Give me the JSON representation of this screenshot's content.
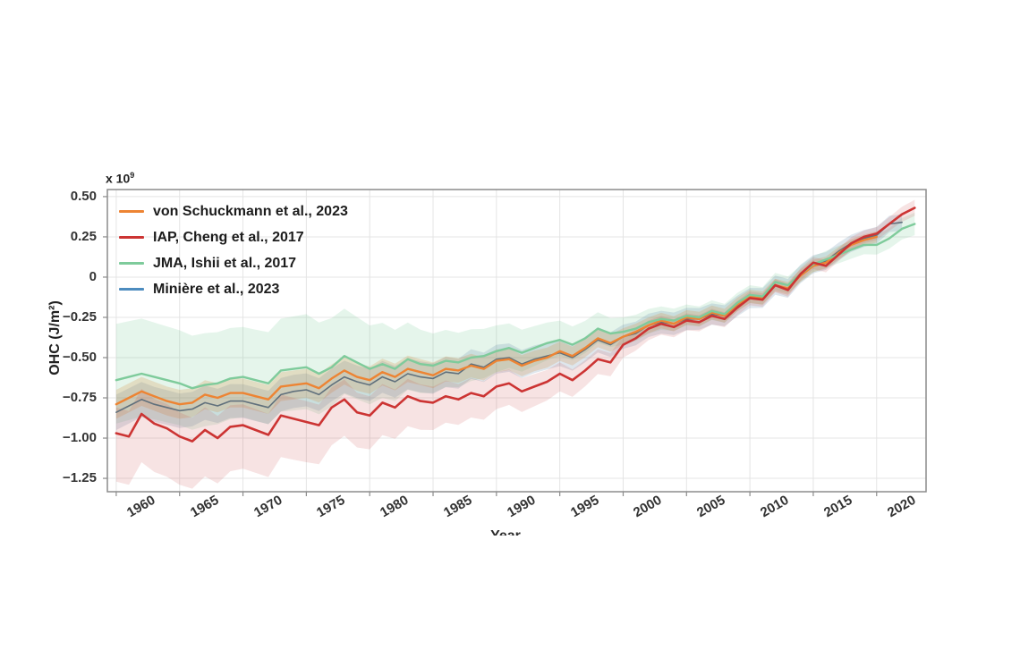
{
  "figure": {
    "ylabel": "OHC (J/m²)",
    "xlabel": "Year",
    "offset_label": {
      "base": "x 10",
      "exponent": "9"
    }
  },
  "chart_data": {
    "type": "line",
    "title": "",
    "xlabel": "Year",
    "ylabel": "OHC (J/m²)",
    "y_scale_label": "x 10⁹",
    "grid": true,
    "legend_position": "top-left-inside",
    "xlim": [
      1959.3,
      2023.9
    ],
    "ylim": [
      -1.333,
      0.544
    ],
    "x_ticks": [
      1960,
      1965,
      1970,
      1975,
      1980,
      1985,
      1990,
      1995,
      2000,
      2005,
      2010,
      2015,
      2020
    ],
    "y_ticks": [
      0.5,
      0.25,
      0,
      -0.25,
      -0.5,
      -0.75,
      -1.0,
      -1.25
    ],
    "y_tick_labels": [
      "0.50",
      "0.25",
      "0",
      "−0.25",
      "−0.50",
      "−0.75",
      "−1.00",
      "−1.25"
    ],
    "colors": {
      "grid": "#e4e4e4",
      "frame": "#8c8c8c",
      "tick_text": "#333333"
    },
    "series": [
      {
        "name": "von Schuckmann et al., 2023",
        "color": "#ED8433",
        "band_color": "rgba(213,135,55,0.22)",
        "line_width": 2.4,
        "start_year": 1960,
        "values": [
          -0.79,
          -0.75,
          -0.71,
          -0.74,
          -0.77,
          -0.79,
          -0.78,
          -0.73,
          -0.75,
          -0.72,
          -0.72,
          -0.74,
          -0.76,
          -0.68,
          -0.67,
          -0.66,
          -0.69,
          -0.63,
          -0.58,
          -0.62,
          -0.64,
          -0.59,
          -0.62,
          -0.57,
          -0.59,
          -0.61,
          -0.57,
          -0.58,
          -0.55,
          -0.57,
          -0.52,
          -0.51,
          -0.55,
          -0.52,
          -0.5,
          -0.46,
          -0.49,
          -0.44,
          -0.38,
          -0.41,
          -0.37,
          -0.34,
          -0.3,
          -0.27,
          -0.29,
          -0.25,
          -0.26,
          -0.22,
          -0.24,
          -0.17,
          -0.12,
          -0.13,
          -0.05,
          -0.07,
          0.01,
          0.07,
          0.09,
          0.15,
          0.2,
          0.23,
          0.25
        ],
        "band_anchors": [
          [
            1960,
            0.09,
            0.09
          ],
          [
            1975,
            0.09,
            0.09
          ],
          [
            1985,
            0.08,
            0.08
          ],
          [
            1995,
            0.06,
            0.06
          ],
          [
            2005,
            0.045,
            0.045
          ],
          [
            2012,
            0.04,
            0.04
          ],
          [
            2020,
            0.035,
            0.035
          ]
        ]
      },
      {
        "name": "IAP, Cheng et al., 2017",
        "color": "#CC3433",
        "band_color": "rgba(204,70,70,0.15)",
        "line_width": 2.6,
        "start_year": 1960,
        "values": [
          -0.97,
          -0.99,
          -0.85,
          -0.91,
          -0.94,
          -0.99,
          -1.02,
          -0.95,
          -1.0,
          -0.93,
          -0.92,
          -0.95,
          -0.98,
          -0.86,
          -0.88,
          -0.9,
          -0.92,
          -0.81,
          -0.76,
          -0.84,
          -0.86,
          -0.78,
          -0.81,
          -0.74,
          -0.77,
          -0.78,
          -0.74,
          -0.76,
          -0.72,
          -0.74,
          -0.68,
          -0.66,
          -0.71,
          -0.68,
          -0.65,
          -0.6,
          -0.64,
          -0.58,
          -0.51,
          -0.53,
          -0.42,
          -0.38,
          -0.32,
          -0.29,
          -0.31,
          -0.27,
          -0.28,
          -0.24,
          -0.26,
          -0.19,
          -0.13,
          -0.14,
          -0.05,
          -0.08,
          0.02,
          0.09,
          0.07,
          0.14,
          0.21,
          0.25,
          0.27,
          0.33,
          0.39,
          0.43
        ],
        "band_anchors": [
          [
            1960,
            0.16,
            0.3
          ],
          [
            1965,
            0.15,
            0.3
          ],
          [
            1970,
            0.13,
            0.27
          ],
          [
            1975,
            0.13,
            0.25
          ],
          [
            1980,
            0.12,
            0.21
          ],
          [
            1985,
            0.1,
            0.17
          ],
          [
            1990,
            0.09,
            0.14
          ],
          [
            1995,
            0.07,
            0.11
          ],
          [
            2000,
            0.055,
            0.08
          ],
          [
            2005,
            0.045,
            0.06
          ],
          [
            2010,
            0.04,
            0.045
          ],
          [
            2015,
            0.035,
            0.04
          ],
          [
            2020,
            0.04,
            0.04
          ],
          [
            2023,
            0.05,
            0.05
          ]
        ]
      },
      {
        "name": "JMA, Ishii et al., 2017",
        "color": "#7ECB9B",
        "band_color": "rgba(126,203,155,0.20)",
        "line_width": 2.4,
        "start_year": 1960,
        "values": [
          -0.64,
          -0.62,
          -0.6,
          -0.62,
          -0.64,
          -0.66,
          -0.69,
          -0.67,
          -0.66,
          -0.63,
          -0.62,
          -0.64,
          -0.66,
          -0.58,
          -0.57,
          -0.56,
          -0.6,
          -0.56,
          -0.49,
          -0.53,
          -0.57,
          -0.54,
          -0.57,
          -0.51,
          -0.54,
          -0.55,
          -0.52,
          -0.53,
          -0.5,
          -0.49,
          -0.46,
          -0.44,
          -0.47,
          -0.44,
          -0.41,
          -0.39,
          -0.42,
          -0.38,
          -0.32,
          -0.35,
          -0.34,
          -0.32,
          -0.28,
          -0.26,
          -0.27,
          -0.24,
          -0.25,
          -0.21,
          -0.23,
          -0.16,
          -0.11,
          -0.12,
          -0.03,
          -0.05,
          0.02,
          0.08,
          0.11,
          0.14,
          0.17,
          0.2,
          0.2,
          0.24,
          0.3,
          0.33
        ],
        "band_anchors": [
          [
            1960,
            0.35,
            0.27
          ],
          [
            1965,
            0.33,
            0.26
          ],
          [
            1970,
            0.31,
            0.25
          ],
          [
            1975,
            0.33,
            0.26
          ],
          [
            1980,
            0.27,
            0.22
          ],
          [
            1985,
            0.2,
            0.17
          ],
          [
            1990,
            0.16,
            0.13
          ],
          [
            1995,
            0.12,
            0.1
          ],
          [
            2000,
            0.09,
            0.08
          ],
          [
            2005,
            0.07,
            0.06
          ],
          [
            2010,
            0.06,
            0.05
          ],
          [
            2015,
            0.05,
            0.05
          ],
          [
            2020,
            0.06,
            0.06
          ],
          [
            2023,
            0.07,
            0.07
          ]
        ]
      },
      {
        "name": "Minière et al., 2023",
        "color": "#60707C",
        "legend_color": "#4D8CBF",
        "band_color": "rgba(90,130,165,0.20)",
        "line_width": 1.6,
        "start_year": 1960,
        "values": [
          -0.84,
          -0.8,
          -0.76,
          -0.79,
          -0.81,
          -0.83,
          -0.82,
          -0.78,
          -0.8,
          -0.77,
          -0.77,
          -0.79,
          -0.81,
          -0.73,
          -0.71,
          -0.7,
          -0.73,
          -0.67,
          -0.62,
          -0.65,
          -0.67,
          -0.62,
          -0.65,
          -0.6,
          -0.62,
          -0.63,
          -0.59,
          -0.6,
          -0.54,
          -0.56,
          -0.51,
          -0.5,
          -0.54,
          -0.51,
          -0.49,
          -0.47,
          -0.5,
          -0.45,
          -0.39,
          -0.42,
          -0.37,
          -0.35,
          -0.3,
          -0.28,
          -0.29,
          -0.26,
          -0.26,
          -0.23,
          -0.24,
          -0.18,
          -0.13,
          -0.13,
          -0.05,
          -0.07,
          0.02,
          0.08,
          0.1,
          0.16,
          0.21,
          0.24,
          0.26,
          0.33,
          0.34
        ],
        "band_anchors": [
          [
            1960,
            0.11,
            0.11
          ],
          [
            1980,
            0.1,
            0.1
          ],
          [
            1990,
            0.09,
            0.09
          ],
          [
            2000,
            0.075,
            0.075
          ],
          [
            2008,
            0.065,
            0.065
          ],
          [
            2016,
            0.055,
            0.055
          ],
          [
            2022,
            0.05,
            0.05
          ]
        ]
      }
    ]
  }
}
